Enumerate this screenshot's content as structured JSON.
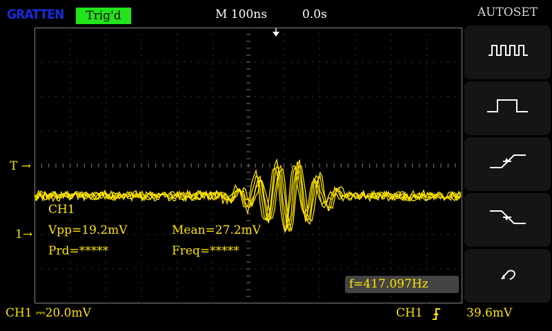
{
  "header": {
    "logo": "GRATTEN",
    "trigger_status": "Trig'd",
    "timebase": "M 100ns",
    "horizontal_position": "0.0s"
  },
  "menu": {
    "title": "AUTOSET",
    "buttons": [
      {
        "icon": "multi-period-square-wave-icon"
      },
      {
        "icon": "single-period-pulse-icon"
      },
      {
        "icon": "rising-edge-icon"
      },
      {
        "icon": "falling-edge-icon"
      },
      {
        "icon": "undo-icon"
      }
    ]
  },
  "markers": {
    "trigger_level": "T",
    "channel": "1"
  },
  "measurements": {
    "channel": "CH1",
    "vpp": "Vpp=19.2mV",
    "mean": "Mean=27.2mV",
    "period": "Prd=*****",
    "frequency": "Freq=*****"
  },
  "frequency_counter": "f=417.097Hz",
  "footer": {
    "ch1_scale": "CH1 ⎓20.0mV",
    "trigger_source": "CH1",
    "trigger_edge_icon": "rising-edge-icon",
    "trigger_level": "39.6mV"
  },
  "colors": {
    "trace": "#ffe500",
    "trig_badge": "#22e41a",
    "logo": "#1a2ad8",
    "grid": "#666666"
  }
}
